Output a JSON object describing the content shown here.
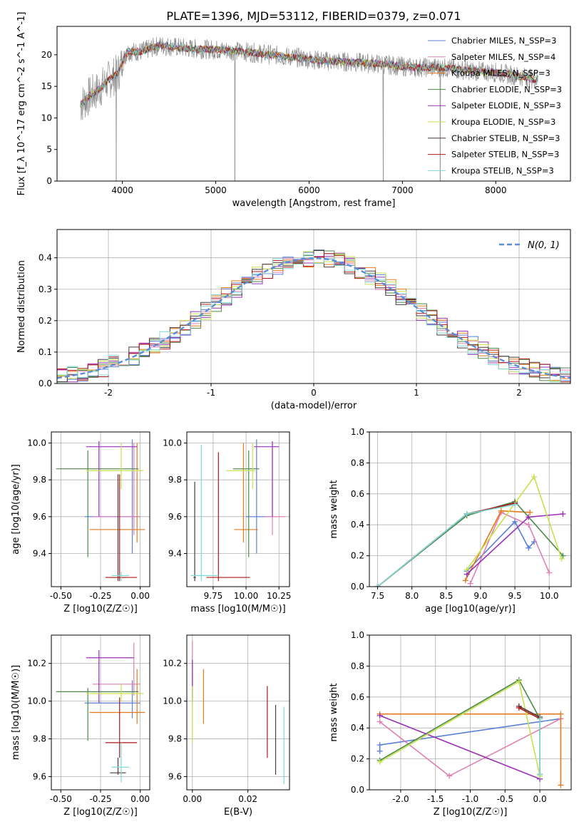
{
  "figure": {
    "title": "PLATE=1396, MJD=53112, FIBERID=0379, z=0.071"
  },
  "chart_data": [
    {
      "id": "spectrum",
      "type": "line",
      "xlabel": "wavelength [Angstrom, rest frame]",
      "ylabel": "Flux [f_λ 10^-17 erg cm^-2 s^-1 A^-1]",
      "xlim": [
        3300,
        8800
      ],
      "ylim": [
        0,
        24.5
      ],
      "xticks": [
        4000,
        5000,
        6000,
        7000,
        8000
      ],
      "yticks": [
        0,
        5,
        10,
        15,
        20
      ],
      "grid": false,
      "legend_position": "top-right",
      "data_note": "observed spectrum (gray) with nine overlaid model fits",
      "observed_anchors": {
        "x": [
          3550,
          3650,
          3750,
          3850,
          3950,
          4050,
          4200,
          4400,
          4700,
          5000,
          5300,
          5600,
          5900,
          6200,
          6500,
          6800,
          7100,
          7400,
          7700,
          8000,
          8300,
          8450
        ],
        "y": [
          12,
          13.5,
          14.5,
          16,
          17,
          20.5,
          20.5,
          21.5,
          21,
          20.8,
          20.5,
          20,
          19.5,
          19,
          18.8,
          18.5,
          18,
          18,
          17.5,
          17.2,
          16.5,
          16
        ]
      },
      "absorption_dips": [
        {
          "x": 3934,
          "y": 0
        },
        {
          "x": 5205,
          "y": 0
        },
        {
          "x": 6795,
          "y": 0
        },
        {
          "x": 7405,
          "y": 0
        }
      ],
      "series": [
        {
          "name": "Chabrier MILES, N_SSP=3",
          "color": "#5b7fd6"
        },
        {
          "name": "Salpeter MILES, N_SSP=4",
          "color": "#e07fb3"
        },
        {
          "name": "Kroupa MILES, N_SSP=3",
          "color": "#e57a1a"
        },
        {
          "name": "Chabrier ELODIE, N_SSP=3",
          "color": "#4a8a4a"
        },
        {
          "name": "Salpeter ELODIE, N_SSP=3",
          "color": "#9b30b8"
        },
        {
          "name": "Kroupa ELODIE, N_SSP=3",
          "color": "#c8e04c"
        },
        {
          "name": "Chabrier STELIB, N_SSP=3",
          "color": "#4a3a3a"
        },
        {
          "name": "Salpeter STELIB, N_SSP=3",
          "color": "#b01818"
        },
        {
          "name": "Kroupa STELIB, N_SSP=3",
          "color": "#7ed8d8"
        }
      ]
    },
    {
      "id": "residuals",
      "type": "line",
      "xlabel": "(data-model)/error",
      "ylabel": "Normed distribution",
      "xlim": [
        -2.5,
        2.5
      ],
      "ylim": [
        0,
        0.49
      ],
      "xticks": [
        -2,
        -1,
        0,
        1,
        2
      ],
      "yticks": [
        0.0,
        0.1,
        0.2,
        0.3,
        0.4
      ],
      "grid": true,
      "legend_position": "top-right",
      "gaussian_label": "N(0, 1)",
      "gaussian_color": "#5b8dd6",
      "bin_width": 0.1,
      "histogram_center": [
        0.03,
        0.04,
        0.04,
        0.05,
        0.05,
        0.06,
        0.07,
        0.09,
        0.1,
        0.11,
        0.12,
        0.14,
        0.16,
        0.18,
        0.2,
        0.22,
        0.25,
        0.28,
        0.3,
        0.33,
        0.35,
        0.36,
        0.37,
        0.38,
        0.39,
        0.39,
        0.4,
        0.4,
        0.4,
        0.39,
        0.39,
        0.38,
        0.37,
        0.36,
        0.35,
        0.33,
        0.3,
        0.28,
        0.25,
        0.22,
        0.2,
        0.18,
        0.16,
        0.14,
        0.12,
        0.11,
        0.1,
        0.09,
        0.07,
        0.06,
        0.05,
        0.05,
        0.04,
        0.04,
        0.04,
        0.03,
        0.03,
        0.03,
        0.03,
        0.03,
        0.03,
        0.03,
        0.03,
        0.03,
        0.03,
        0.02,
        0.02,
        0.02,
        0.02,
        0.02,
        0.02,
        0.02,
        0.02,
        0.02,
        0.02,
        0.02,
        0.02,
        0.02,
        0.02,
        0.02,
        0.02,
        0.02,
        0.02,
        0.02,
        0.02,
        0.02,
        0.02,
        0.02,
        0.02,
        0.02,
        0.02,
        0.02,
        0.02,
        0.02,
        0.02,
        0.02,
        0.02,
        0.02,
        0.02,
        0.02
      ]
    },
    {
      "id": "age_vs_Z",
      "type": "scatter",
      "xlabel": "Z [log10(Z/Z☉)]",
      "ylabel": "age [log10(age/yr)]",
      "xlim": [
        -0.56,
        0.06
      ],
      "ylim": [
        9.22,
        10.06
      ],
      "xticks": [
        -0.5,
        -0.25,
        0.0
      ],
      "yticks": [
        9.4,
        9.6,
        9.8,
        10.0
      ],
      "grid": true,
      "points": [
        {
          "series": 0,
          "x": -0.05,
          "y": 9.6,
          "xerr": [
            0.3,
            0.05
          ],
          "yerr": [
            0.2,
            0.42
          ]
        },
        {
          "series": 1,
          "x": -0.04,
          "y": 9.6,
          "xerr": [
            0.26,
            0.04
          ],
          "yerr": [
            0.1,
            0.4
          ]
        },
        {
          "series": 2,
          "x": -0.02,
          "y": 9.53,
          "xerr": [
            0.3,
            0.05
          ],
          "yerr": [
            0.07,
            0.47
          ]
        },
        {
          "series": 3,
          "x": -0.33,
          "y": 9.86,
          "xerr": [
            0.2,
            0.32
          ],
          "yerr": [
            0.48,
            0.1
          ]
        },
        {
          "series": 4,
          "x": -0.26,
          "y": 9.98,
          "xerr": [
            0.08,
            0.24
          ],
          "yerr": [
            0.38,
            0.03
          ]
        },
        {
          "series": 5,
          "x": -0.12,
          "y": 9.85,
          "xerr": [
            0.22,
            0.14
          ],
          "yerr": [
            0.1,
            0.15
          ]
        },
        {
          "series": 6,
          "x": -0.14,
          "y": 9.27,
          "xerr": [
            0.05,
            0.05
          ],
          "yerr": [
            0.02,
            0.56
          ]
        },
        {
          "series": 7,
          "x": -0.13,
          "y": 9.27,
          "xerr": [
            0.09,
            0.11
          ],
          "yerr": [
            0.02,
            0.56
          ]
        },
        {
          "series": 8,
          "x": -0.12,
          "y": 9.28,
          "xerr": [
            0.06,
            0.05
          ],
          "yerr": [
            0.03,
            0.02
          ]
        }
      ]
    },
    {
      "id": "age_vs_mass",
      "type": "scatter",
      "xlabel": "mass [log10(M/M☉)]",
      "ylabel": "",
      "xlim": [
        9.55,
        10.33
      ],
      "ylim": [
        9.22,
        10.06
      ],
      "xticks": [
        9.75,
        10.0,
        10.25
      ],
      "tick_labels": [
        "9.75",
        "10.00",
        "10.25"
      ],
      "yticks": [
        9.4,
        9.6,
        9.8,
        10.0
      ],
      "grid": true,
      "points": [
        {
          "series": 0,
          "x": 10.08,
          "y": 9.6,
          "xerr": [
            0.08,
            0.12
          ],
          "yerr": [
            0.2,
            0.42
          ]
        },
        {
          "series": 1,
          "x": 10.2,
          "y": 9.6,
          "xerr": [
            0.06,
            0.1
          ],
          "yerr": [
            0.1,
            0.4
          ]
        },
        {
          "series": 2,
          "x": 9.98,
          "y": 9.53,
          "xerr": [
            0.07,
            0.11
          ],
          "yerr": [
            0.07,
            0.47
          ]
        },
        {
          "series": 3,
          "x": 10.02,
          "y": 9.86,
          "xerr": [
            0.12,
            0.08
          ],
          "yerr": [
            0.48,
            0.1
          ]
        },
        {
          "series": 4,
          "x": 10.2,
          "y": 9.98,
          "xerr": [
            0.14,
            0.05
          ],
          "yerr": [
            0.38,
            0.03
          ]
        },
        {
          "series": 5,
          "x": 10.05,
          "y": 9.85,
          "xerr": [
            0.2,
            0.02
          ],
          "yerr": [
            0.1,
            0.15
          ]
        },
        {
          "series": 6,
          "x": 9.61,
          "y": 9.27,
          "xerr": [
            0.01,
            0.01
          ],
          "yerr": [
            0.02,
            0.52
          ]
        },
        {
          "series": 7,
          "x": 9.79,
          "y": 9.27,
          "xerr": [
            0.09,
            0.24
          ],
          "yerr": [
            0.02,
            0.68
          ]
        },
        {
          "series": 8,
          "x": 9.66,
          "y": 9.28,
          "xerr": [
            0.08,
            0.13
          ],
          "yerr": [
            0.03,
            0.71
          ]
        }
      ]
    },
    {
      "id": "weight_vs_age",
      "type": "line",
      "xlabel": "age [log10(age/yr)]",
      "ylabel": "mass weight",
      "xlim": [
        7.38,
        10.32
      ],
      "ylim": [
        0,
        1.0
      ],
      "xticks": [
        7.5,
        8.0,
        8.5,
        9.0,
        9.5,
        10.0
      ],
      "yticks": [
        0.0,
        0.2,
        0.4,
        0.6,
        0.8,
        1.0
      ],
      "grid": true,
      "series_points": [
        {
          "series": 0,
          "x": [
            8.8,
            9.5,
            9.7,
            9.78
          ],
          "y": [
            0.1,
            0.42,
            0.25,
            0.29
          ]
        },
        {
          "series": 1,
          "x": [
            8.85,
            9.3,
            9.7,
            10.0
          ],
          "y": [
            0.02,
            0.48,
            0.4,
            0.09
          ]
        },
        {
          "series": 2,
          "x": [
            8.78,
            9.3,
            9.72
          ],
          "y": [
            0.04,
            0.49,
            0.48
          ]
        },
        {
          "series": 3,
          "x": [
            7.5,
            8.8,
            9.5,
            10.2
          ],
          "y": [
            0.0,
            0.46,
            0.55,
            0.2
          ]
        },
        {
          "series": 4,
          "x": [
            8.8,
            9.7,
            10.2
          ],
          "y": [
            0.08,
            0.45,
            0.47
          ]
        },
        {
          "series": 5,
          "x": [
            8.8,
            9.78,
            10.18
          ],
          "y": [
            0.11,
            0.71,
            0.18
          ]
        },
        {
          "series": 6,
          "x": [
            7.5,
            8.8,
            9.5
          ],
          "y": [
            0.0,
            0.47,
            0.54
          ]
        },
        {
          "series": 7,
          "x": [
            7.5,
            8.8,
            9.5
          ],
          "y": [
            0.0,
            0.47,
            0.54
          ]
        },
        {
          "series": 8,
          "x": [
            7.5,
            8.8,
            9.5
          ],
          "y": [
            0.0,
            0.47,
            0.53
          ]
        }
      ]
    },
    {
      "id": "mass_vs_Z",
      "type": "scatter",
      "xlabel": "Z [log10(Z/Z☉)]",
      "ylabel": "mass [log10(M/M☉)]",
      "xlim": [
        -0.56,
        0.06
      ],
      "ylim": [
        9.53,
        10.35
      ],
      "xticks": [
        -0.5,
        -0.25,
        0.0
      ],
      "yticks": [
        9.6,
        9.8,
        10.0,
        10.2
      ],
      "grid": true,
      "points": [
        {
          "series": 0,
          "x": -0.05,
          "y": 9.99,
          "xerr": [
            0.3,
            0.05
          ],
          "yerr": [
            0.08,
            0.12
          ]
        },
        {
          "series": 1,
          "x": -0.04,
          "y": 10.09,
          "xerr": [
            0.26,
            0.04
          ],
          "yerr": [
            0.06,
            0.22
          ]
        },
        {
          "series": 2,
          "x": -0.02,
          "y": 9.94,
          "xerr": [
            0.3,
            0.05
          ],
          "yerr": [
            0.06,
            0.23
          ]
        },
        {
          "series": 3,
          "x": -0.33,
          "y": 10.05,
          "xerr": [
            0.2,
            0.32
          ],
          "yerr": [
            0.26,
            0.02
          ]
        },
        {
          "series": 4,
          "x": -0.26,
          "y": 10.23,
          "xerr": [
            0.08,
            0.22
          ],
          "yerr": [
            0.24,
            0.04
          ]
        },
        {
          "series": 5,
          "x": -0.12,
          "y": 10.04,
          "xerr": [
            0.22,
            0.14
          ],
          "yerr": [
            0.04,
            0.05
          ]
        },
        {
          "series": 6,
          "x": -0.14,
          "y": 9.62,
          "xerr": [
            0.05,
            0.05
          ],
          "yerr": [
            0.01,
            0.08
          ]
        },
        {
          "series": 7,
          "x": -0.13,
          "y": 9.78,
          "xerr": [
            0.09,
            0.11
          ],
          "yerr": [
            0.08,
            0.24
          ]
        },
        {
          "series": 8,
          "x": -0.12,
          "y": 9.65,
          "xerr": [
            0.06,
            0.05
          ],
          "yerr": [
            0.08,
            0.13
          ]
        }
      ]
    },
    {
      "id": "mass_vs_EBV",
      "type": "scatter",
      "xlabel": "E(B-V)",
      "ylabel": "",
      "xlim": [
        -0.002,
        0.035
      ],
      "ylim": [
        9.53,
        10.35
      ],
      "xticks": [
        0.0,
        0.02
      ],
      "tick_labels": [
        "0.00",
        "0.02"
      ],
      "yticks": [
        9.6,
        9.8,
        10.0,
        10.2
      ],
      "grid": true,
      "points": [
        {
          "series": 0,
          "x": 0.0,
          "y": 10.05,
          "yerr": [
            0.06,
            0.1
          ]
        },
        {
          "series": 1,
          "x": 0.0,
          "y": 10.12,
          "yerr": [
            0.1,
            0.2
          ]
        },
        {
          "series": 2,
          "x": 0.004,
          "y": 10.03,
          "yerr": [
            0.15,
            0.14
          ]
        },
        {
          "series": 3,
          "x": 0.0,
          "y": 10.05,
          "yerr": [
            0.05,
            0.02
          ]
        },
        {
          "series": 4,
          "x": 0.0,
          "y": 10.1,
          "yerr": [
            0.08,
            0.12
          ]
        },
        {
          "series": 5,
          "x": 0.0,
          "y": 9.9,
          "yerr": [
            0.12,
            0.18
          ]
        },
        {
          "series": 6,
          "x": 0.03,
          "y": 9.8,
          "yerr": [
            0.19,
            0.18
          ]
        },
        {
          "series": 7,
          "x": 0.027,
          "y": 9.89,
          "yerr": [
            0.19,
            0.19
          ]
        },
        {
          "series": 8,
          "x": 0.033,
          "y": 9.77,
          "yerr": [
            0.21,
            0.2
          ]
        }
      ]
    },
    {
      "id": "weight_vs_Z",
      "type": "line",
      "xlabel": "Z [log10(Z/Z☉)]",
      "ylabel": "mass weight",
      "xlim": [
        -2.45,
        0.45
      ],
      "ylim": [
        0,
        1.0
      ],
      "xticks": [
        -2.0,
        -1.5,
        -1.0,
        -0.5,
        0.0
      ],
      "yticks": [
        0.0,
        0.2,
        0.4,
        0.6,
        0.8,
        1.0
      ],
      "grid": true,
      "series_points": [
        {
          "series": 0,
          "x": [
            -2.3,
            -2.3,
            0.3
          ],
          "y": [
            0.25,
            0.29,
            0.46
          ]
        },
        {
          "series": 1,
          "x": [
            -2.3,
            -1.3,
            0.3
          ],
          "y": [
            0.44,
            0.09,
            0.46
          ]
        },
        {
          "series": 2,
          "x": [
            -2.3,
            0.3,
            0.3
          ],
          "y": [
            0.49,
            0.49,
            0.03
          ]
        },
        {
          "series": 3,
          "x": [
            -2.3,
            -0.3,
            0.0,
            0.0
          ],
          "y": [
            0.19,
            0.71,
            0.46,
            0.1
          ]
        },
        {
          "series": 4,
          "x": [
            -2.3,
            0.0
          ],
          "y": [
            0.48,
            0.07
          ]
        },
        {
          "series": 5,
          "x": [
            -2.3,
            -0.3,
            0.0
          ],
          "y": [
            0.18,
            0.7,
            0.09
          ]
        },
        {
          "series": 6,
          "x": [
            -0.3,
            0.0
          ],
          "y": [
            0.54,
            0.47
          ]
        },
        {
          "series": 7,
          "x": [
            -0.3,
            0.0
          ],
          "y": [
            0.53,
            0.46
          ]
        },
        {
          "series": 8,
          "x": [
            0.0,
            0.0
          ],
          "y": [
            0.46,
            0.1
          ]
        }
      ]
    }
  ]
}
